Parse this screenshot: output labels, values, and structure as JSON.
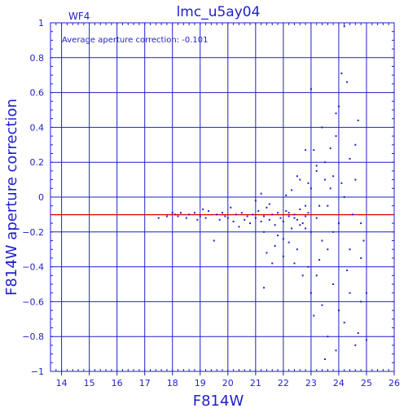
{
  "chart_data": {
    "type": "scatter",
    "title": "lmc_u5ay04",
    "panel_label": "WF4",
    "annotation": "Average aperture correction: -0.101",
    "xlabel": "F814W",
    "ylabel": "F814W aperture correction",
    "xlim": [
      13.6,
      26
    ],
    "ylim": [
      -1,
      1
    ],
    "xticks": [
      14,
      15,
      16,
      17,
      18,
      19,
      20,
      21,
      22,
      23,
      24,
      25,
      26
    ],
    "yticks": [
      -1,
      -0.8,
      -0.6,
      -0.4,
      -0.2,
      0,
      0.2,
      0.4,
      0.6,
      0.8,
      1
    ],
    "ytick_labels": [
      "−1",
      "−0.8",
      "−0.6",
      "−0.4",
      "−0.2",
      "0",
      "0.2",
      "0.4",
      "0.6",
      "0.8",
      "1"
    ],
    "grid": true,
    "reference_line": {
      "y": -0.101,
      "color": "#e00000"
    },
    "colors": {
      "axes": "#1f1fcc",
      "points": "#1f1fcc",
      "reference": "#e00000"
    },
    "series": [
      {
        "points": [
          [
            17.5,
            -0.12
          ],
          [
            17.8,
            -0.11
          ],
          [
            18.0,
            -0.09
          ],
          [
            18.1,
            -0.1
          ],
          [
            18.2,
            -0.11
          ],
          [
            18.3,
            -0.09
          ],
          [
            18.5,
            -0.12
          ],
          [
            18.6,
            -0.1
          ],
          [
            18.8,
            -0.09
          ],
          [
            18.9,
            -0.13
          ],
          [
            19.0,
            -0.11
          ],
          [
            19.1,
            -0.07
          ],
          [
            19.2,
            -0.12
          ],
          [
            19.3,
            -0.08
          ],
          [
            19.5,
            -0.25
          ],
          [
            19.6,
            -0.1
          ],
          [
            19.7,
            -0.13
          ],
          [
            19.8,
            -0.09
          ],
          [
            19.9,
            -0.11
          ],
          [
            20.0,
            -0.12
          ],
          [
            20.1,
            -0.06
          ],
          [
            20.2,
            -0.14
          ],
          [
            20.3,
            -0.1
          ],
          [
            20.4,
            -0.17
          ],
          [
            20.5,
            -0.09
          ],
          [
            20.6,
            -0.13
          ],
          [
            20.7,
            -0.11
          ],
          [
            20.8,
            -0.15
          ],
          [
            20.9,
            -0.1
          ],
          [
            21.0,
            -0.12
          ],
          [
            21.1,
            -0.08
          ],
          [
            21.2,
            -0.14
          ],
          [
            21.3,
            -0.11
          ],
          [
            21.3,
            -0.2
          ],
          [
            21.4,
            -0.06
          ],
          [
            21.5,
            -0.13
          ],
          [
            21.6,
            -0.1
          ],
          [
            21.7,
            -0.16
          ],
          [
            21.8,
            -0.09
          ],
          [
            21.9,
            -0.12
          ],
          [
            22.0,
            -0.14
          ],
          [
            22.1,
            -0.08
          ],
          [
            22.2,
            -0.11
          ],
          [
            22.3,
            -0.18
          ],
          [
            22.4,
            -0.1
          ],
          [
            22.5,
            -0.13
          ],
          [
            22.6,
            -0.07
          ],
          [
            22.7,
            -0.15
          ],
          [
            22.8,
            -0.11
          ],
          [
            22.9,
            -0.09
          ],
          [
            21.0,
            -0.02
          ],
          [
            21.2,
            0.02
          ],
          [
            21.5,
            -0.04
          ],
          [
            21.8,
            -0.22
          ],
          [
            22.0,
            -0.24
          ],
          [
            22.1,
            0.01
          ],
          [
            22.3,
            0.04
          ],
          [
            22.5,
            -0.3
          ],
          [
            22.6,
            0.1
          ],
          [
            22.8,
            -0.05
          ],
          [
            21.4,
            -0.32
          ],
          [
            21.6,
            -0.38
          ],
          [
            21.3,
            -0.52
          ],
          [
            21.7,
            -0.28
          ],
          [
            22.0,
            -0.34
          ],
          [
            22.2,
            -0.26
          ],
          [
            22.4,
            -0.38
          ],
          [
            22.5,
            0.12
          ],
          [
            22.7,
            -0.45
          ],
          [
            22.9,
            0.08
          ],
          [
            23.0,
            0.62
          ],
          [
            23.1,
            0.27
          ],
          [
            23.2,
            0.15
          ],
          [
            23.3,
            -0.05
          ],
          [
            23.4,
            0.4
          ],
          [
            23.5,
            0.2
          ],
          [
            23.6,
            -0.3
          ],
          [
            23.7,
            0.05
          ],
          [
            23.8,
            -0.2
          ],
          [
            23.9,
            0.35
          ],
          [
            24.0,
            0.52
          ],
          [
            24.1,
            0.71
          ],
          [
            24.2,
            0.98
          ],
          [
            24.3,
            0.66
          ],
          [
            24.4,
            0.22
          ],
          [
            24.5,
            -0.1
          ],
          [
            24.6,
            0.3
          ],
          [
            24.7,
            0.44
          ],
          [
            24.8,
            -0.35
          ],
          [
            24.9,
            -0.25
          ],
          [
            22.8,
            0.27
          ],
          [
            22.9,
            -0.4
          ],
          [
            23.0,
            -0.55
          ],
          [
            23.1,
            -0.68
          ],
          [
            23.2,
            -0.45
          ],
          [
            23.4,
            -0.62
          ],
          [
            23.6,
            -0.8
          ],
          [
            23.8,
            -0.5
          ],
          [
            24.0,
            -0.65
          ],
          [
            24.2,
            -0.72
          ],
          [
            24.4,
            -0.55
          ],
          [
            24.6,
            -0.85
          ],
          [
            24.8,
            -0.6
          ],
          [
            25.0,
            -0.82
          ],
          [
            23.5,
            -0.93
          ],
          [
            23.9,
            -0.88
          ],
          [
            24.7,
            -0.78
          ],
          [
            25.0,
            -0.55
          ],
          [
            24.3,
            -0.42
          ],
          [
            23.3,
            -0.36
          ],
          [
            23.0,
            -0.2
          ],
          [
            23.2,
            -0.12
          ],
          [
            23.4,
            -0.25
          ],
          [
            23.6,
            -0.05
          ],
          [
            23.8,
            0.12
          ],
          [
            24.0,
            -0.15
          ],
          [
            24.2,
            0.0
          ],
          [
            24.4,
            -0.3
          ],
          [
            24.6,
            0.1
          ],
          [
            24.8,
            -0.15
          ],
          [
            22.2,
            -0.09
          ],
          [
            22.4,
            -0.12
          ],
          [
            22.6,
            -0.16
          ],
          [
            22.8,
            -0.18
          ],
          [
            23.0,
            0.05
          ],
          [
            23.2,
            0.18
          ],
          [
            23.5,
            0.1
          ],
          [
            23.7,
            0.28
          ],
          [
            23.9,
            0.48
          ],
          [
            24.1,
            0.08
          ]
        ]
      }
    ]
  }
}
